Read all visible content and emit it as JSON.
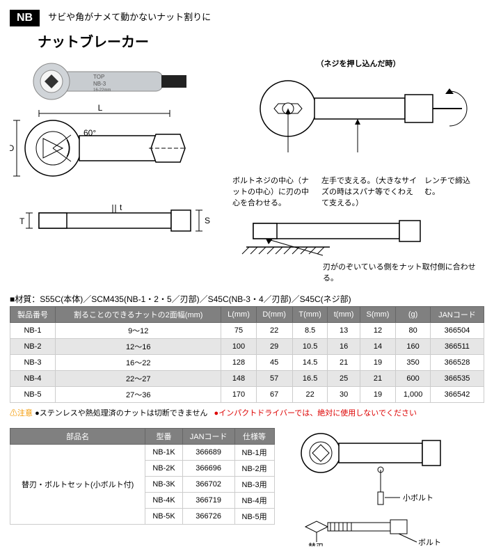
{
  "header": {
    "badge": "NB",
    "tagline": "サビや角がナメて動かないナット割りに",
    "title": "ナットブレーカー"
  },
  "fig": {
    "push_caption": "（ネジを押し込んだ時）",
    "center_note": "ボルトネジの中心（ナットの中心）に刃の中心を合わせる。",
    "left_hand": "左手で支える。（大きなサイズの時はスパナ等でくわえて支える。）",
    "wrench": "レンチで締込む。",
    "peek": "刃がのぞいている側をナット取付側に合わせる。",
    "angle": "60°",
    "dim_L": "L",
    "dim_D": "D",
    "dim_T": "T",
    "dim_t": "t",
    "dim_S": "S",
    "small_bolt": "小ボルト",
    "blade": "替刃",
    "bolt": "ボルト"
  },
  "material": "■材質：S55C(本体)／SCM435(NB-1・2・5／刃部)／S45C(NB-3・4／刃部)／S45C(ネジ部)",
  "table1": {
    "headers": [
      "製品番号",
      "割ることのできるナットの2面幅(mm)",
      "L(mm)",
      "D(mm)",
      "T(mm)",
      "t(mm)",
      "S(mm)",
      "(g)",
      "JANコード"
    ],
    "rows": [
      [
        "NB-1",
        "9〜12",
        "75",
        "22",
        "8.5",
        "13",
        "12",
        "80",
        "366504"
      ],
      [
        "NB-2",
        "12〜16",
        "100",
        "29",
        "10.5",
        "16",
        "14",
        "160",
        "366511"
      ],
      [
        "NB-3",
        "16〜22",
        "128",
        "45",
        "14.5",
        "21",
        "19",
        "350",
        "366528"
      ],
      [
        "NB-4",
        "22〜27",
        "148",
        "57",
        "16.5",
        "25",
        "21",
        "600",
        "366535"
      ],
      [
        "NB-5",
        "27〜36",
        "170",
        "67",
        "22",
        "30",
        "19",
        "1,000",
        "366542"
      ]
    ]
  },
  "warning": {
    "label": "⚠注意",
    "text1": "●ステンレスや熱処理済のナットは切断できません",
    "text2": "●インパクトドライバーでは、絶対に使用しないでください"
  },
  "table2": {
    "headers": [
      "部品名",
      "型番",
      "JANコード",
      "仕様等"
    ],
    "part": "替刃・ボルトセット(小ボルト付)",
    "rows": [
      [
        "NB-1K",
        "366689",
        "NB-1用"
      ],
      [
        "NB-2K",
        "366696",
        "NB-2用"
      ],
      [
        "NB-3K",
        "366702",
        "NB-3用"
      ],
      [
        "NB-4K",
        "366719",
        "NB-4用"
      ],
      [
        "NB-5K",
        "366726",
        "NB-5用"
      ]
    ]
  },
  "style": {
    "header_bg": "#808080",
    "header_fg": "#ffffff",
    "row_alt": "#e6e6e6",
    "border": "#cccccc",
    "red": "#dd0000",
    "orange": "#f39800"
  }
}
